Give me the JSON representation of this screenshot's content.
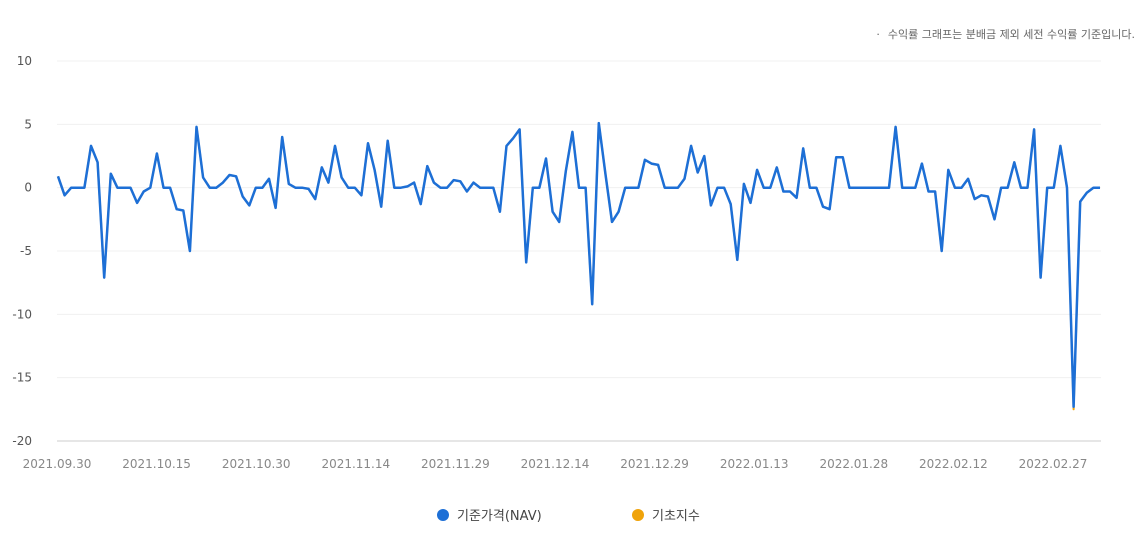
{
  "note": {
    "bullet": "·",
    "text": "수익률 그래프는 분배금 제외 세전 수익률 기준입니다."
  },
  "chart_data": {
    "type": "line",
    "title": "",
    "xlabel": "",
    "ylabel": "",
    "ylim": [
      -20,
      10
    ],
    "yticks": [
      10,
      5,
      0,
      -5,
      -10,
      -15,
      -20
    ],
    "ytick_labels": [
      "10",
      "5",
      "0",
      "-5",
      "-10",
      "-15",
      "-20"
    ],
    "xtick_labels": [
      "2021.09.30",
      "2021.10.15",
      "2021.10.30",
      "2021.11.14",
      "2021.11.29",
      "2021.12.14",
      "2021.12.29",
      "2022.01.13",
      "2022.01.28",
      "2022.02.12",
      "2022.02.27"
    ],
    "grid": true,
    "legend_position": "bottom",
    "series": [
      {
        "name": "기준가격(NAV)",
        "color": "#1d6fd6",
        "values": [
          0.9,
          -0.6,
          0,
          0,
          0,
          3.3,
          2,
          -7.1,
          1.1,
          0,
          0,
          0,
          -1.2,
          -0.3,
          0,
          2.7,
          0,
          0,
          -1.7,
          -1.8,
          -5,
          4.8,
          0.8,
          0,
          0,
          0.4,
          1,
          0.9,
          -0.7,
          -1.4,
          0,
          0,
          0.7,
          -1.6,
          4,
          0.3,
          0,
          0,
          -0.1,
          -0.9,
          1.6,
          0.4,
          3.3,
          0.8,
          0,
          0,
          -0.6,
          3.5,
          1.4,
          -1.5,
          3.7,
          0,
          0,
          0.1,
          0.4,
          -1.3,
          1.7,
          0.4,
          0,
          0,
          0.6,
          0.5,
          -0.3,
          0.4,
          0,
          0,
          0,
          -1.9,
          3.3,
          3.9,
          4.6,
          -5.9,
          0,
          0,
          2.3,
          -1.9,
          -2.7,
          1.3,
          4.4,
          0,
          0,
          -9.2,
          5.1,
          1.1,
          -2.7,
          -1.9,
          0,
          0,
          0,
          2.2,
          1.9,
          1.8,
          0,
          0,
          0,
          0.7,
          3.3,
          1.2,
          2.5,
          -1.4,
          0,
          0,
          -1.3,
          -5.7,
          0.3,
          -1.2,
          1.4,
          0,
          0,
          1.6,
          -0.3,
          -0.3,
          -0.8,
          3.1,
          0,
          0,
          -1.5,
          -1.7,
          2.4,
          2.4,
          0,
          0,
          0,
          0,
          0,
          0,
          0,
          4.8,
          0,
          0,
          0,
          1.9,
          -0.3,
          -0.3,
          -5,
          1.4,
          0,
          0,
          0.7,
          -0.9,
          -0.6,
          -0.7,
          -2.5,
          0,
          0,
          2,
          0,
          0,
          4.6,
          -7.1,
          0,
          0,
          3.3,
          0,
          -17.3,
          -1.1,
          -0.4,
          0,
          0
        ]
      },
      {
        "name": "기초지수",
        "color": "#f0a30a",
        "values": [
          0.9,
          -0.6,
          0,
          0,
          0,
          3.3,
          2,
          -7.1,
          1.1,
          0,
          0,
          0,
          -1.2,
          -0.3,
          0,
          2.7,
          0,
          0,
          -1.7,
          -1.8,
          -5,
          4.8,
          0.8,
          0,
          0,
          0.4,
          1,
          0.9,
          -0.7,
          -1.4,
          0,
          0,
          0.7,
          -1.6,
          4,
          0.3,
          0,
          0,
          -0.1,
          -0.9,
          1.6,
          0.4,
          3.3,
          0.8,
          0,
          0,
          -0.6,
          3.5,
          1.4,
          -1.5,
          3.7,
          0,
          0,
          0.1,
          0.4,
          -1.3,
          1.7,
          0.4,
          0,
          0,
          0.6,
          0.5,
          -0.3,
          0.4,
          0,
          0,
          0,
          -1.9,
          3.3,
          3.9,
          4.6,
          -5.9,
          0,
          0,
          2.3,
          -1.9,
          -2.7,
          1.3,
          4.4,
          0,
          0,
          -9.2,
          5.1,
          1.1,
          -2.7,
          -1.9,
          0,
          0,
          0,
          2.2,
          1.9,
          1.8,
          0,
          0,
          0,
          0.7,
          3.3,
          1.2,
          2.5,
          -1.4,
          0,
          0,
          -1.3,
          -5.7,
          0.3,
          -1.2,
          1.4,
          0,
          0,
          1.6,
          -0.3,
          -0.3,
          -0.8,
          3.1,
          0,
          0,
          -1.5,
          -1.7,
          2.4,
          2.4,
          0,
          0,
          0,
          0,
          0,
          0,
          0,
          4.8,
          0,
          0,
          0,
          1.9,
          -0.3,
          -0.3,
          -5,
          1.4,
          0,
          0,
          0.7,
          -0.9,
          -0.6,
          -0.7,
          -2.5,
          0,
          0,
          2,
          0,
          0,
          4.6,
          -7.1,
          0,
          0,
          3.3,
          0,
          -17.5,
          -1.1,
          -0.4,
          0,
          0
        ]
      }
    ]
  }
}
